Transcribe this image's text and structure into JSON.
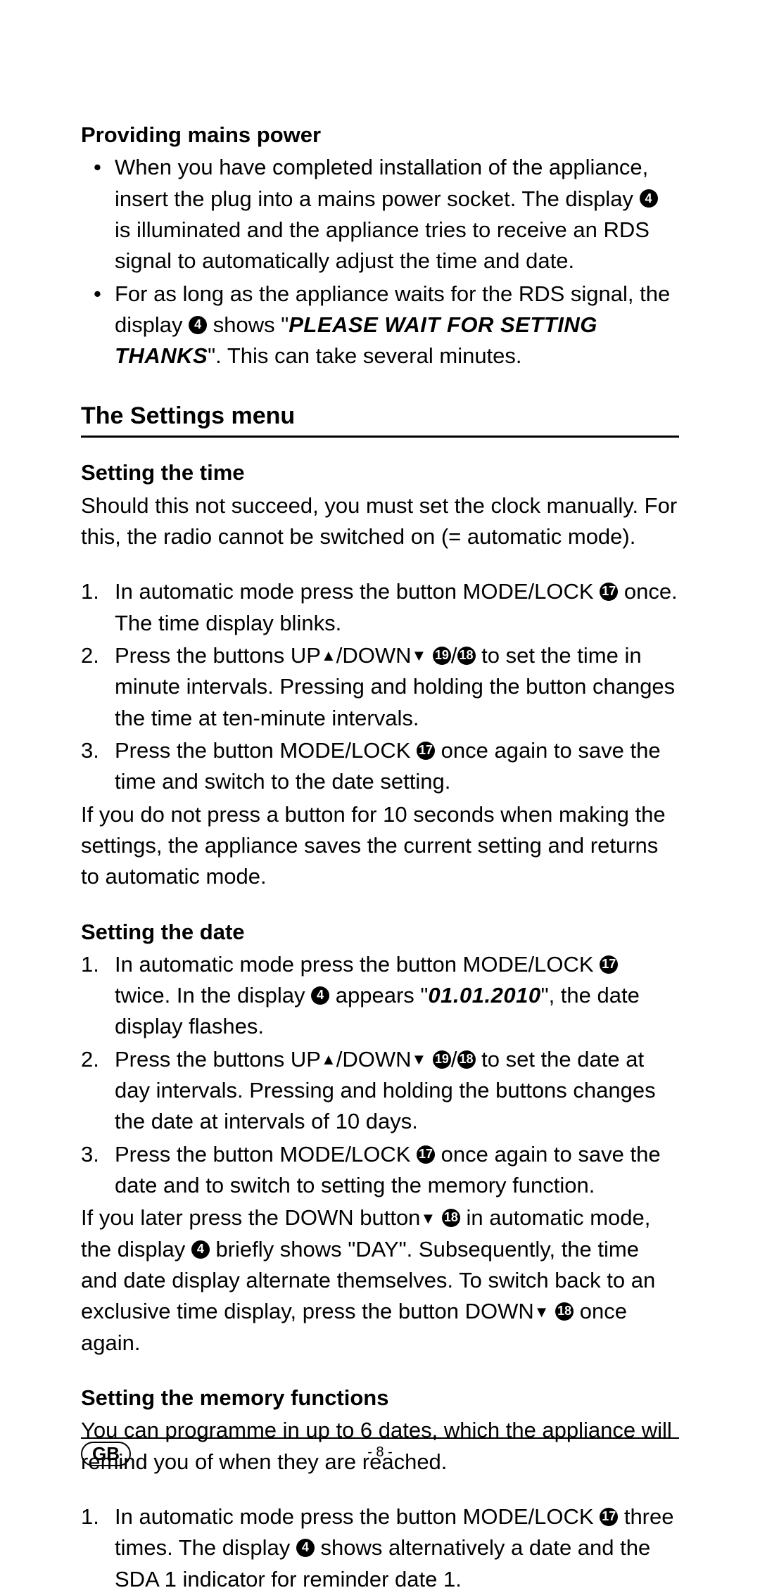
{
  "section1": {
    "heading": "Providing mains power",
    "bullets": [
      {
        "pre": "When you have completed installation of the appliance, insert the plug into a mains power socket. The display ",
        "ref": "4",
        "post": " is illuminated and the appliance tries to receive an RDS signal to automatically adjust the time and date."
      },
      {
        "pre": "For as long as the appliance waits for the RDS signal, the display ",
        "ref": "4",
        "mid": " shows \"",
        "disp": "PLEASE WAIT FOR SETTING THANKS",
        "post": "\". This can take several minutes."
      }
    ]
  },
  "section2": {
    "title": "The Settings menu"
  },
  "time": {
    "heading": "Setting the time",
    "intro": "Should this not succeed, you must set the clock manually. For this, the radio cannot be switched on (= automatic mode).",
    "items": [
      {
        "num": "1.",
        "pre": "In automatic mode press the button MODE/LOCK ",
        "ref": "17",
        "post": " once. The time display blinks."
      },
      {
        "num": "2.",
        "pre": "Press the buttons UP",
        "tri1": "▲",
        "mid1": "/DOWN",
        "tri2": "▼",
        "sp": " ",
        "ref1": "19",
        "slash": "/",
        "ref2": "18",
        "post": " to set the time in minute intervals. Pressing and holding the button changes the time at ten-minute intervals."
      },
      {
        "num": "3.",
        "pre": "Press the button MODE/LOCK ",
        "ref": "17",
        "post": " once again to save the time and switch to the date setting."
      }
    ],
    "outro": "If you do not press a button for 10 seconds when making the settings, the appliance saves the current setting and returns to automatic mode."
  },
  "date": {
    "heading": "Setting the date",
    "items": [
      {
        "num": "1.",
        "pre": "In automatic mode press the button MODE/LOCK ",
        "ref1": "17",
        "mid1": " twice. In the display ",
        "ref2": "4",
        "mid2": " appears \"",
        "disp": "01.01.2010",
        "post": "\", the date display flashes."
      },
      {
        "num": "2.",
        "pre": "Press the buttons UP",
        "tri1": "▲",
        "mid1": "/DOWN",
        "tri2": "▼",
        "sp": " ",
        "ref1": "19",
        "slash": "/",
        "ref2": "18",
        "post": " to set the date at day intervals. Pressing and holding the buttons changes the date at intervals of 10 days."
      },
      {
        "num": "3.",
        "pre": "Press the button MODE/LOCK ",
        "ref": "17",
        "post": " once again to save the date and to switch to setting the memory function."
      }
    ],
    "outro": {
      "p1": "If you later press the DOWN button",
      "tri1": "▼",
      "sp1": " ",
      "ref1": "18",
      "p2": " in automatic mode, the display ",
      "ref2": "4",
      "p3": " briefly shows \"DAY\". Subsequently, the time and date display alternate themselves. To switch back to an exclusive time display, press the button DOWN",
      "tri2": "▼",
      "sp2": " ",
      "ref3": "18",
      "p4": "  once again."
    }
  },
  "memory": {
    "heading": "Setting the memory functions",
    "intro": "You can programme in up to 6 dates, which the appliance will remind you of when they are reached.",
    "items": [
      {
        "num": "1.",
        "pre": "In automatic mode press the button MODE/LOCK ",
        "ref1": "17",
        "mid": " three times. The display ",
        "ref2": "4",
        "post": " shows alternatively a date and the SDA 1 indicator for reminder date 1."
      }
    ]
  },
  "footer": {
    "badge": "GB",
    "page": "- 8 -"
  },
  "circled_map": {
    "4": "❹",
    "17": "⓱",
    "18": "⓲",
    "19": "⓳"
  }
}
